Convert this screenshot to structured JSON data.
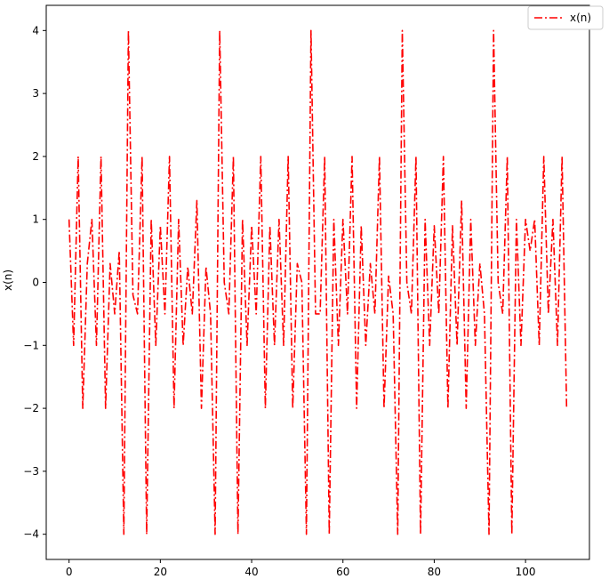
{
  "chart_data": {
    "type": "line",
    "title": "",
    "xlabel": "",
    "ylabel": "x(n)",
    "xlim": [
      -5,
      114
    ],
    "ylim": [
      -4.4,
      4.4
    ],
    "xticks": [
      0,
      20,
      40,
      60,
      80,
      100
    ],
    "yticks": [
      -4,
      -3,
      -2,
      -1,
      0,
      1,
      2,
      3,
      4
    ],
    "grid": false,
    "legend": "top-right",
    "series": [
      {
        "name": "x(n)",
        "color": "#ff0000",
        "linestyle": "dashdot",
        "x": [
          0,
          1,
          2,
          3,
          4,
          5,
          6,
          7,
          8,
          9,
          10,
          11,
          12,
          13,
          14,
          15,
          16,
          17,
          18,
          19,
          20,
          21,
          22,
          23,
          24,
          25,
          26,
          27,
          28,
          29,
          30,
          31,
          32,
          33,
          34,
          35,
          36,
          37,
          38,
          39,
          40,
          41,
          42,
          43,
          44,
          45,
          46,
          47,
          48,
          49,
          50,
          51,
          52,
          53,
          54,
          55,
          56,
          57,
          58,
          59,
          60,
          61,
          62,
          63,
          64,
          65,
          66,
          67,
          68,
          69,
          70,
          71,
          72,
          73,
          74,
          75,
          76,
          77,
          78,
          79,
          80,
          81,
          82,
          83,
          84,
          85,
          86,
          87,
          88,
          89,
          90,
          91,
          92,
          93,
          94,
          95,
          96,
          97,
          98,
          99,
          100,
          101,
          102,
          103,
          104,
          105,
          106,
          107,
          108,
          109
        ],
        "y": [
          1,
          -1,
          2,
          -2,
          0.3,
          1,
          -1,
          2,
          -2,
          0.3,
          -0.5,
          0.5,
          -4,
          4,
          -0.2,
          -0.5,
          2,
          -4,
          1,
          -1,
          0.9,
          -0.5,
          2,
          -2,
          1,
          -1,
          0.25,
          -0.5,
          1.3,
          -2,
          0.25,
          -0.5,
          -4,
          4,
          0,
          -0.5,
          2,
          -4,
          1,
          -1,
          0.9,
          -0.5,
          2,
          -2,
          0.9,
          -1,
          1,
          -1,
          2,
          -2,
          0.3,
          0,
          -4,
          4,
          -0.5,
          -0.5,
          2,
          -4,
          1,
          -1,
          1,
          -0.5,
          2,
          -2,
          0.9,
          -1,
          0.3,
          -0.5,
          2,
          -2,
          0.1,
          -0.5,
          -4,
          4,
          0,
          -0.5,
          2,
          -4,
          1,
          -1,
          0.9,
          -0.5,
          2,
          -2,
          0.9,
          -1,
          1.3,
          -2,
          1,
          -1,
          0.3,
          -0.5,
          -4,
          4,
          0,
          -0.5,
          2,
          -4,
          1,
          -1,
          1,
          0.5,
          1,
          -1,
          2,
          -0.5,
          1,
          -1,
          2,
          -2
        ]
      }
    ]
  }
}
